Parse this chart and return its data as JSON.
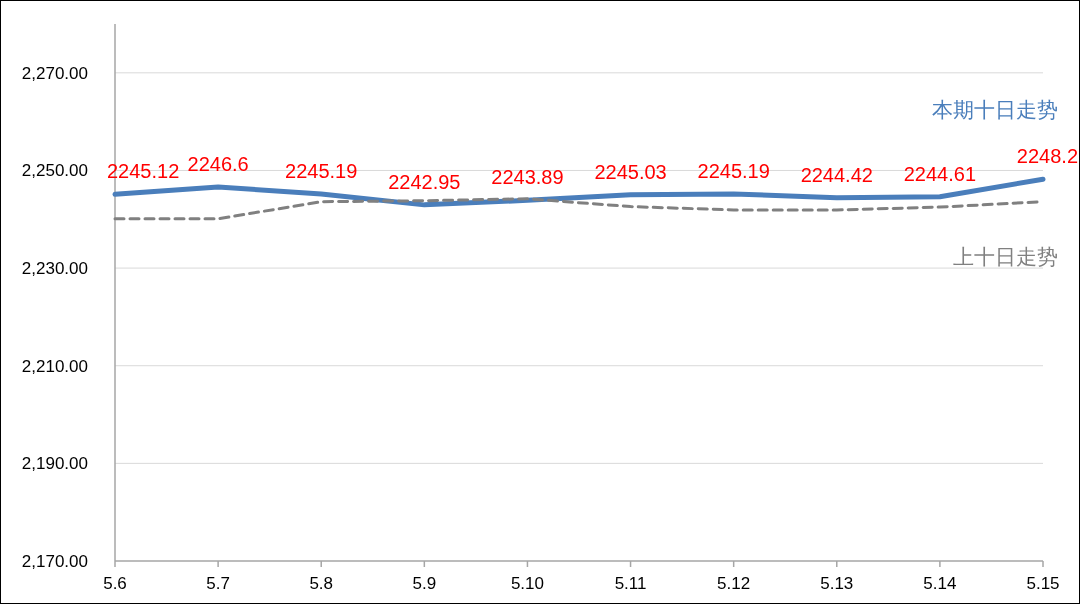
{
  "chart_data": {
    "type": "line",
    "categories": [
      "5.6",
      "5.7",
      "5.8",
      "5.9",
      "5.10",
      "5.11",
      "5.12",
      "5.13",
      "5.14",
      "5.15"
    ],
    "ylim": [
      2170,
      2280
    ],
    "yticks": [
      {
        "value": 2170,
        "label": "2,170.00"
      },
      {
        "value": 2190,
        "label": "2,190.00"
      },
      {
        "value": 2210,
        "label": "2,210.00"
      },
      {
        "value": 2230,
        "label": "2,230.00"
      },
      {
        "value": 2250,
        "label": "2,250.00"
      },
      {
        "value": 2270,
        "label": "2,270.00"
      }
    ],
    "grid": "y",
    "legend": false,
    "marker": "none",
    "series": [
      {
        "name": "本期十日走势",
        "color": "#4a7ebb",
        "line_style": "solid",
        "values": [
          2245.12,
          2246.6,
          2245.19,
          2242.95,
          2243.89,
          2245.03,
          2245.19,
          2244.42,
          2244.61,
          2248.2
        ],
        "data_labels": true
      },
      {
        "name": "上十日走势",
        "color": "#808080",
        "line_style": "dashed",
        "values": [
          2240.1,
          2240.1,
          2243.6,
          2243.8,
          2244.2,
          2242.6,
          2241.9,
          2241.9,
          2242.5,
          2243.6
        ]
      }
    ]
  }
}
